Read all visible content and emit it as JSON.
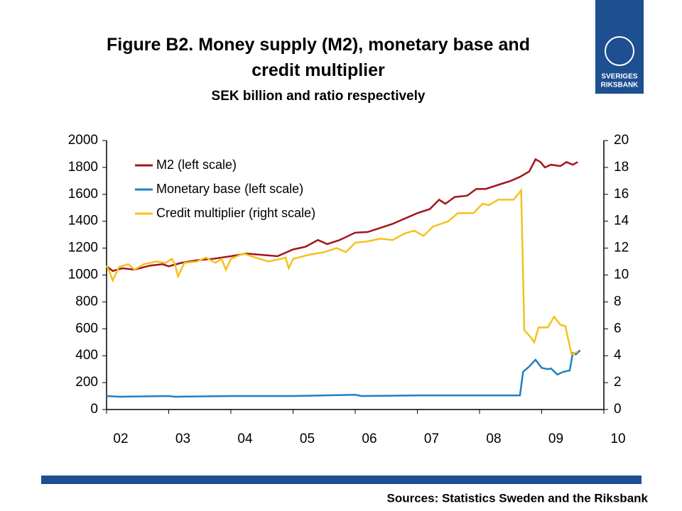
{
  "chart_data": {
    "type": "line",
    "title": "Figure B2. Money supply (M2), monetary base and credit multiplier",
    "subtitle": "SEK billion and ratio respectively",
    "source": "Sources: Statistics Sweden and the Riksbank",
    "logo": [
      "SVERIGES",
      "RIKSBANK"
    ],
    "xlim": [
      2002,
      2010
    ],
    "xticks": [
      {
        "value": 2002,
        "label": "02"
      },
      {
        "value": 2003,
        "label": "03"
      },
      {
        "value": 2004,
        "label": "04"
      },
      {
        "value": 2005,
        "label": "05"
      },
      {
        "value": 2006,
        "label": "06"
      },
      {
        "value": 2007,
        "label": "07"
      },
      {
        "value": 2008,
        "label": "08"
      },
      {
        "value": 2009,
        "label": "09"
      },
      {
        "value": 2010,
        "label": "10"
      }
    ],
    "ylim": [
      0,
      2000
    ],
    "yticks": [
      0,
      200,
      400,
      600,
      800,
      1000,
      1200,
      1400,
      1600,
      1800,
      2000
    ],
    "y2lim": [
      0,
      20
    ],
    "y2ticks": [
      0,
      2,
      4,
      6,
      8,
      10,
      12,
      14,
      16,
      18,
      20
    ],
    "legend": "upper left",
    "series": [
      {
        "name": "M2 (left scale)",
        "color": "#a3141c",
        "x": [
          2002.0,
          2002.1,
          2002.25,
          2002.45,
          2002.7,
          2002.9,
          2003.0,
          2003.2,
          2003.45,
          2003.7,
          2004.0,
          2004.25,
          2004.5,
          2004.75,
          2005.0,
          2005.2,
          2005.4,
          2005.55,
          2005.75,
          2006.0,
          2006.2,
          2006.4,
          2006.6,
          2006.8,
          2007.0,
          2007.2,
          2007.35,
          2007.45,
          2007.6,
          2007.8,
          2007.95,
          2008.1,
          2008.3,
          2008.5,
          2008.65,
          2008.8,
          2008.9,
          2008.98,
          2009.05,
          2009.15,
          2009.3,
          2009.4,
          2009.5,
          2009.58
        ],
        "values": [
          1065,
          1030,
          1050,
          1040,
          1070,
          1080,
          1065,
          1090,
          1110,
          1120,
          1140,
          1160,
          1150,
          1140,
          1190,
          1210,
          1260,
          1230,
          1260,
          1315,
          1320,
          1350,
          1380,
          1420,
          1460,
          1490,
          1560,
          1530,
          1580,
          1590,
          1640,
          1640,
          1670,
          1700,
          1730,
          1770,
          1860,
          1840,
          1800,
          1820,
          1810,
          1840,
          1820,
          1840
        ]
      },
      {
        "name": "Monetary base (left scale)",
        "color": "#1f7fc4",
        "x": [
          2002.0,
          2002.2,
          2003.0,
          2003.1,
          2004.0,
          2005.0,
          2006.0,
          2006.1,
          2007.0,
          2008.0,
          2008.65,
          2008.7,
          2008.8,
          2008.9,
          2009.0,
          2009.1,
          2009.15,
          2009.25,
          2009.35,
          2009.45,
          2009.5,
          2009.55,
          2009.62
        ],
        "values": [
          100,
          95,
          100,
          95,
          100,
          100,
          110,
          100,
          105,
          105,
          105,
          280,
          320,
          370,
          310,
          300,
          305,
          260,
          280,
          290,
          420,
          410,
          440
        ]
      },
      {
        "name": "Credit multiplier (right scale)",
        "color": "#f5c11c",
        "axis": "y2",
        "x": [
          2002.0,
          2002.05,
          2002.1,
          2002.2,
          2002.35,
          2002.45,
          2002.6,
          2002.8,
          2002.95,
          2003.05,
          2003.1,
          2003.15,
          2003.25,
          2003.45,
          2003.6,
          2003.75,
          2003.85,
          2003.92,
          2004.0,
          2004.2,
          2004.4,
          2004.6,
          2004.8,
          2004.88,
          2004.93,
          2005.0,
          2005.25,
          2005.5,
          2005.7,
          2005.85,
          2006.0,
          2006.2,
          2006.4,
          2006.6,
          2006.8,
          2006.95,
          2007.1,
          2007.25,
          2007.5,
          2007.65,
          2007.9,
          2008.05,
          2008.15,
          2008.3,
          2008.55,
          2008.67,
          2008.72,
          2008.8,
          2008.88,
          2008.95,
          2009.1,
          2009.2,
          2009.3,
          2009.38,
          2009.48,
          2009.58
        ],
        "values": [
          10.7,
          10.2,
          9.6,
          10.6,
          10.8,
          10.4,
          10.8,
          11.0,
          10.9,
          11.2,
          10.8,
          9.9,
          10.9,
          11.0,
          11.3,
          10.9,
          11.2,
          10.4,
          11.2,
          11.6,
          11.3,
          11.0,
          11.2,
          11.3,
          10.5,
          11.2,
          11.5,
          11.7,
          12.0,
          11.7,
          12.4,
          12.5,
          12.7,
          12.6,
          13.1,
          13.3,
          12.9,
          13.6,
          14.0,
          14.6,
          14.6,
          15.3,
          15.2,
          15.6,
          15.6,
          16.3,
          5.9,
          5.5,
          5.0,
          6.1,
          6.1,
          6.9,
          6.3,
          6.2,
          4.1,
          4.3
        ]
      }
    ]
  }
}
